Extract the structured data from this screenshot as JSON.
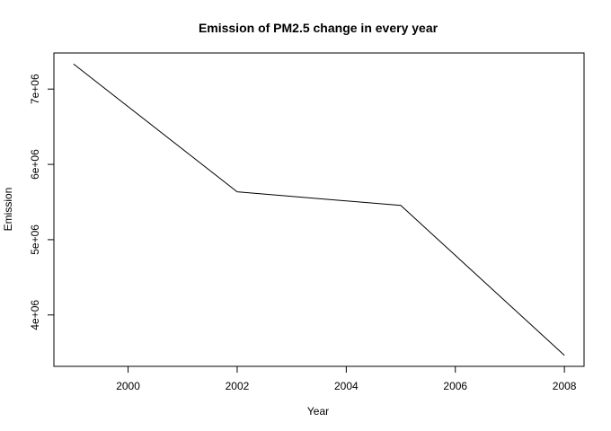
{
  "chart_data": {
    "type": "line",
    "title": "Emission of PM2.5 change in every year",
    "xlabel": "Year",
    "ylabel": "Emission",
    "x": [
      1999,
      2002,
      2005,
      2008
    ],
    "series": [
      {
        "values": [
          7332967,
          5635780,
          5454703,
          3464206
        ]
      }
    ],
    "xlim": [
      1998.64,
      2008.36
    ],
    "ylim": [
      3317500,
      7479500
    ],
    "x_ticks": [
      2000,
      2002,
      2004,
      2006,
      2008
    ],
    "x_tick_labels": [
      "2000",
      "2002",
      "2004",
      "2006",
      "2008"
    ],
    "y_ticks": [
      4000000,
      5000000,
      6000000,
      7000000
    ],
    "y_tick_labels": [
      "4e+06",
      "5e+06",
      "6e+06",
      "7e+06"
    ],
    "grid": false,
    "line_color": "#000000"
  }
}
